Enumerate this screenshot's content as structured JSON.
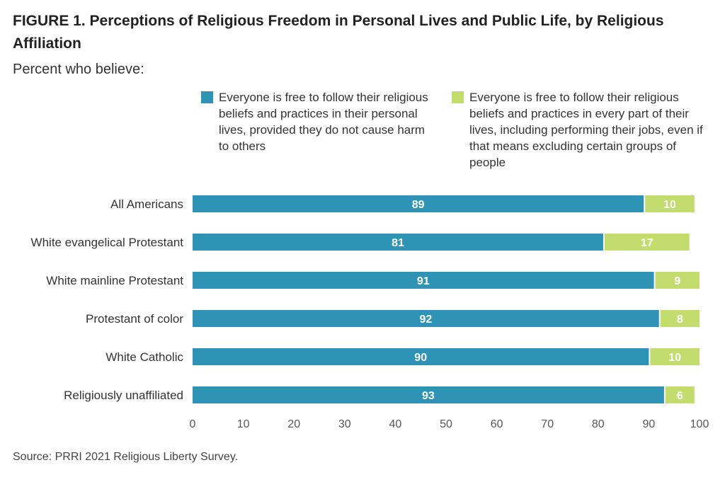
{
  "figure": {
    "title": "FIGURE 1.  Perceptions of Religious Freedom in Personal Lives and Public Life, by Religious Affiliation",
    "subtitle": "Percent who believe:",
    "source": "Source: PRRI 2021 Religious Liberty Survey."
  },
  "chart_data": {
    "type": "bar",
    "orientation": "horizontal",
    "stacked": true,
    "categories": [
      "All Americans",
      "White evangelical Protestant",
      "White mainline Protestant",
      "Protestant of color",
      "White Catholic",
      "Religiously unaffiliated"
    ],
    "series": [
      {
        "name": "Everyone is free to follow their religious beliefs and practices in their personal lives, provided they do not cause harm to others",
        "color": "#2e93b5",
        "values": [
          89,
          81,
          91,
          92,
          90,
          93
        ]
      },
      {
        "name": "Everyone is free to follow their religious beliefs and practices in every part of their lives, including performing their jobs, even if that means excluding certain groups of people",
        "color": "#c2dc6e",
        "values": [
          10,
          17,
          9,
          8,
          10,
          6
        ]
      }
    ],
    "xlim": [
      0,
      100
    ],
    "xticks": [
      0,
      10,
      20,
      30,
      40,
      50,
      60,
      70,
      80,
      90,
      100
    ],
    "data_labels": true,
    "grid": false,
    "legend_position": "top"
  }
}
